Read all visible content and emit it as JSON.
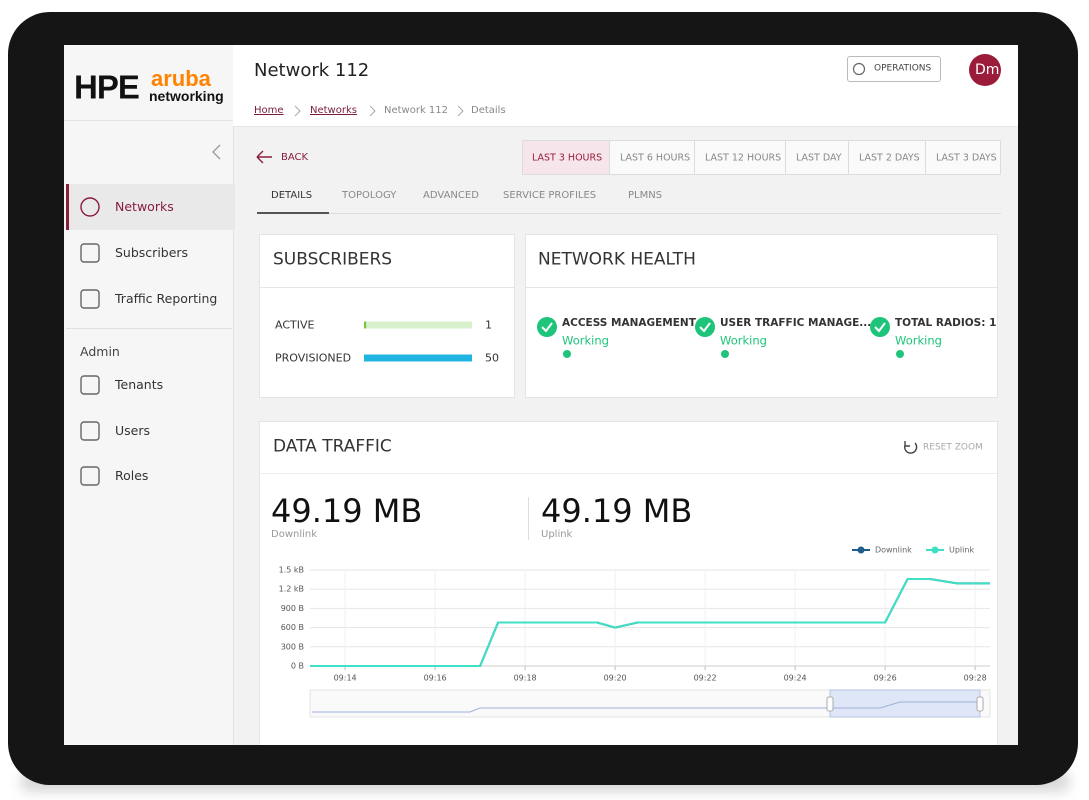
{
  "logo": {
    "brand": "HPE",
    "product": "aruba",
    "sub": "networking"
  },
  "sidebar": {
    "nav": [
      "Networks",
      "Subscribers",
      "Traffic Reporting"
    ],
    "section": "Admin",
    "admin": [
      "Tenants",
      "Users",
      "Roles"
    ]
  },
  "header": {
    "title": "Network 112",
    "operations": "OPERATIONS",
    "avatar": "Dm"
  },
  "breadcrumb": [
    "Home",
    "Networks",
    "Network 112",
    "Details"
  ],
  "back": "BACK",
  "time_ranges": [
    "LAST 3 HOURS",
    "LAST 6 HOURS",
    "LAST 12 HOURS",
    "LAST DAY",
    "LAST 2 DAYS",
    "LAST 3 DAYS"
  ],
  "tabs": [
    "DETAILS",
    "TOPOLOGY",
    "ADVANCED",
    "SERVICE PROFILES",
    "PLMNS"
  ],
  "subscribers": {
    "title": "SUBSCRIBERS",
    "rows": [
      {
        "label": "ACTIVE",
        "value": 1
      },
      {
        "label": "PROVISIONED",
        "value": 50
      }
    ]
  },
  "network_health": {
    "title": "NETWORK HEALTH",
    "items": [
      {
        "label": "ACCESS MANAGEMENT",
        "status": "Working"
      },
      {
        "label": "USER TRAFFIC MANAGE...",
        "status": "Working"
      },
      {
        "label": "TOTAL RADIOS: 1",
        "status": "Working"
      }
    ]
  },
  "data_traffic": {
    "title": "DATA TRAFFIC",
    "reset_zoom": "RESET ZOOM",
    "totals": [
      {
        "value": "49.19 MB",
        "label": "Downlink"
      },
      {
        "value": "49.19 MB",
        "label": "Uplink"
      }
    ],
    "chart": {
      "type": "line",
      "x": [
        13.22,
        17.0,
        17.4,
        19.6,
        20.0,
        20.5,
        26.0,
        26.5,
        27.0,
        27.6,
        28.33
      ],
      "series": [
        {
          "name": "Downlink",
          "color": "#1f5d8c",
          "values": [
            0,
            0,
            680,
            680,
            600,
            680,
            680,
            1360,
            1360,
            1290,
            1290
          ]
        },
        {
          "name": "Uplink",
          "color": "#3fe0c5",
          "values": [
            0,
            0,
            680,
            680,
            600,
            680,
            680,
            1360,
            1360,
            1290,
            1290
          ]
        }
      ],
      "xlim": [
        13.22,
        28.33
      ],
      "xticks": [
        {
          "value": 14,
          "label": "09:14"
        },
        {
          "value": 16,
          "label": "09:16"
        },
        {
          "value": 18,
          "label": "09:18"
        },
        {
          "value": 20,
          "label": "09:20"
        },
        {
          "value": 22,
          "label": "09:22"
        },
        {
          "value": 24,
          "label": "09:24"
        },
        {
          "value": 26,
          "label": "09:26"
        },
        {
          "value": 28,
          "label": "09:28"
        }
      ],
      "ylim": [
        0,
        1500
      ],
      "yticks": [
        {
          "value": 0,
          "label": "0 B"
        },
        {
          "value": 300,
          "label": "300 B"
        },
        {
          "value": 600,
          "label": "600 B"
        },
        {
          "value": 900,
          "label": "900 B"
        },
        {
          "value": 1200,
          "label": "1.2 kB"
        },
        {
          "value": 1500,
          "label": "1.5 kB"
        }
      ],
      "grid": true
    }
  }
}
